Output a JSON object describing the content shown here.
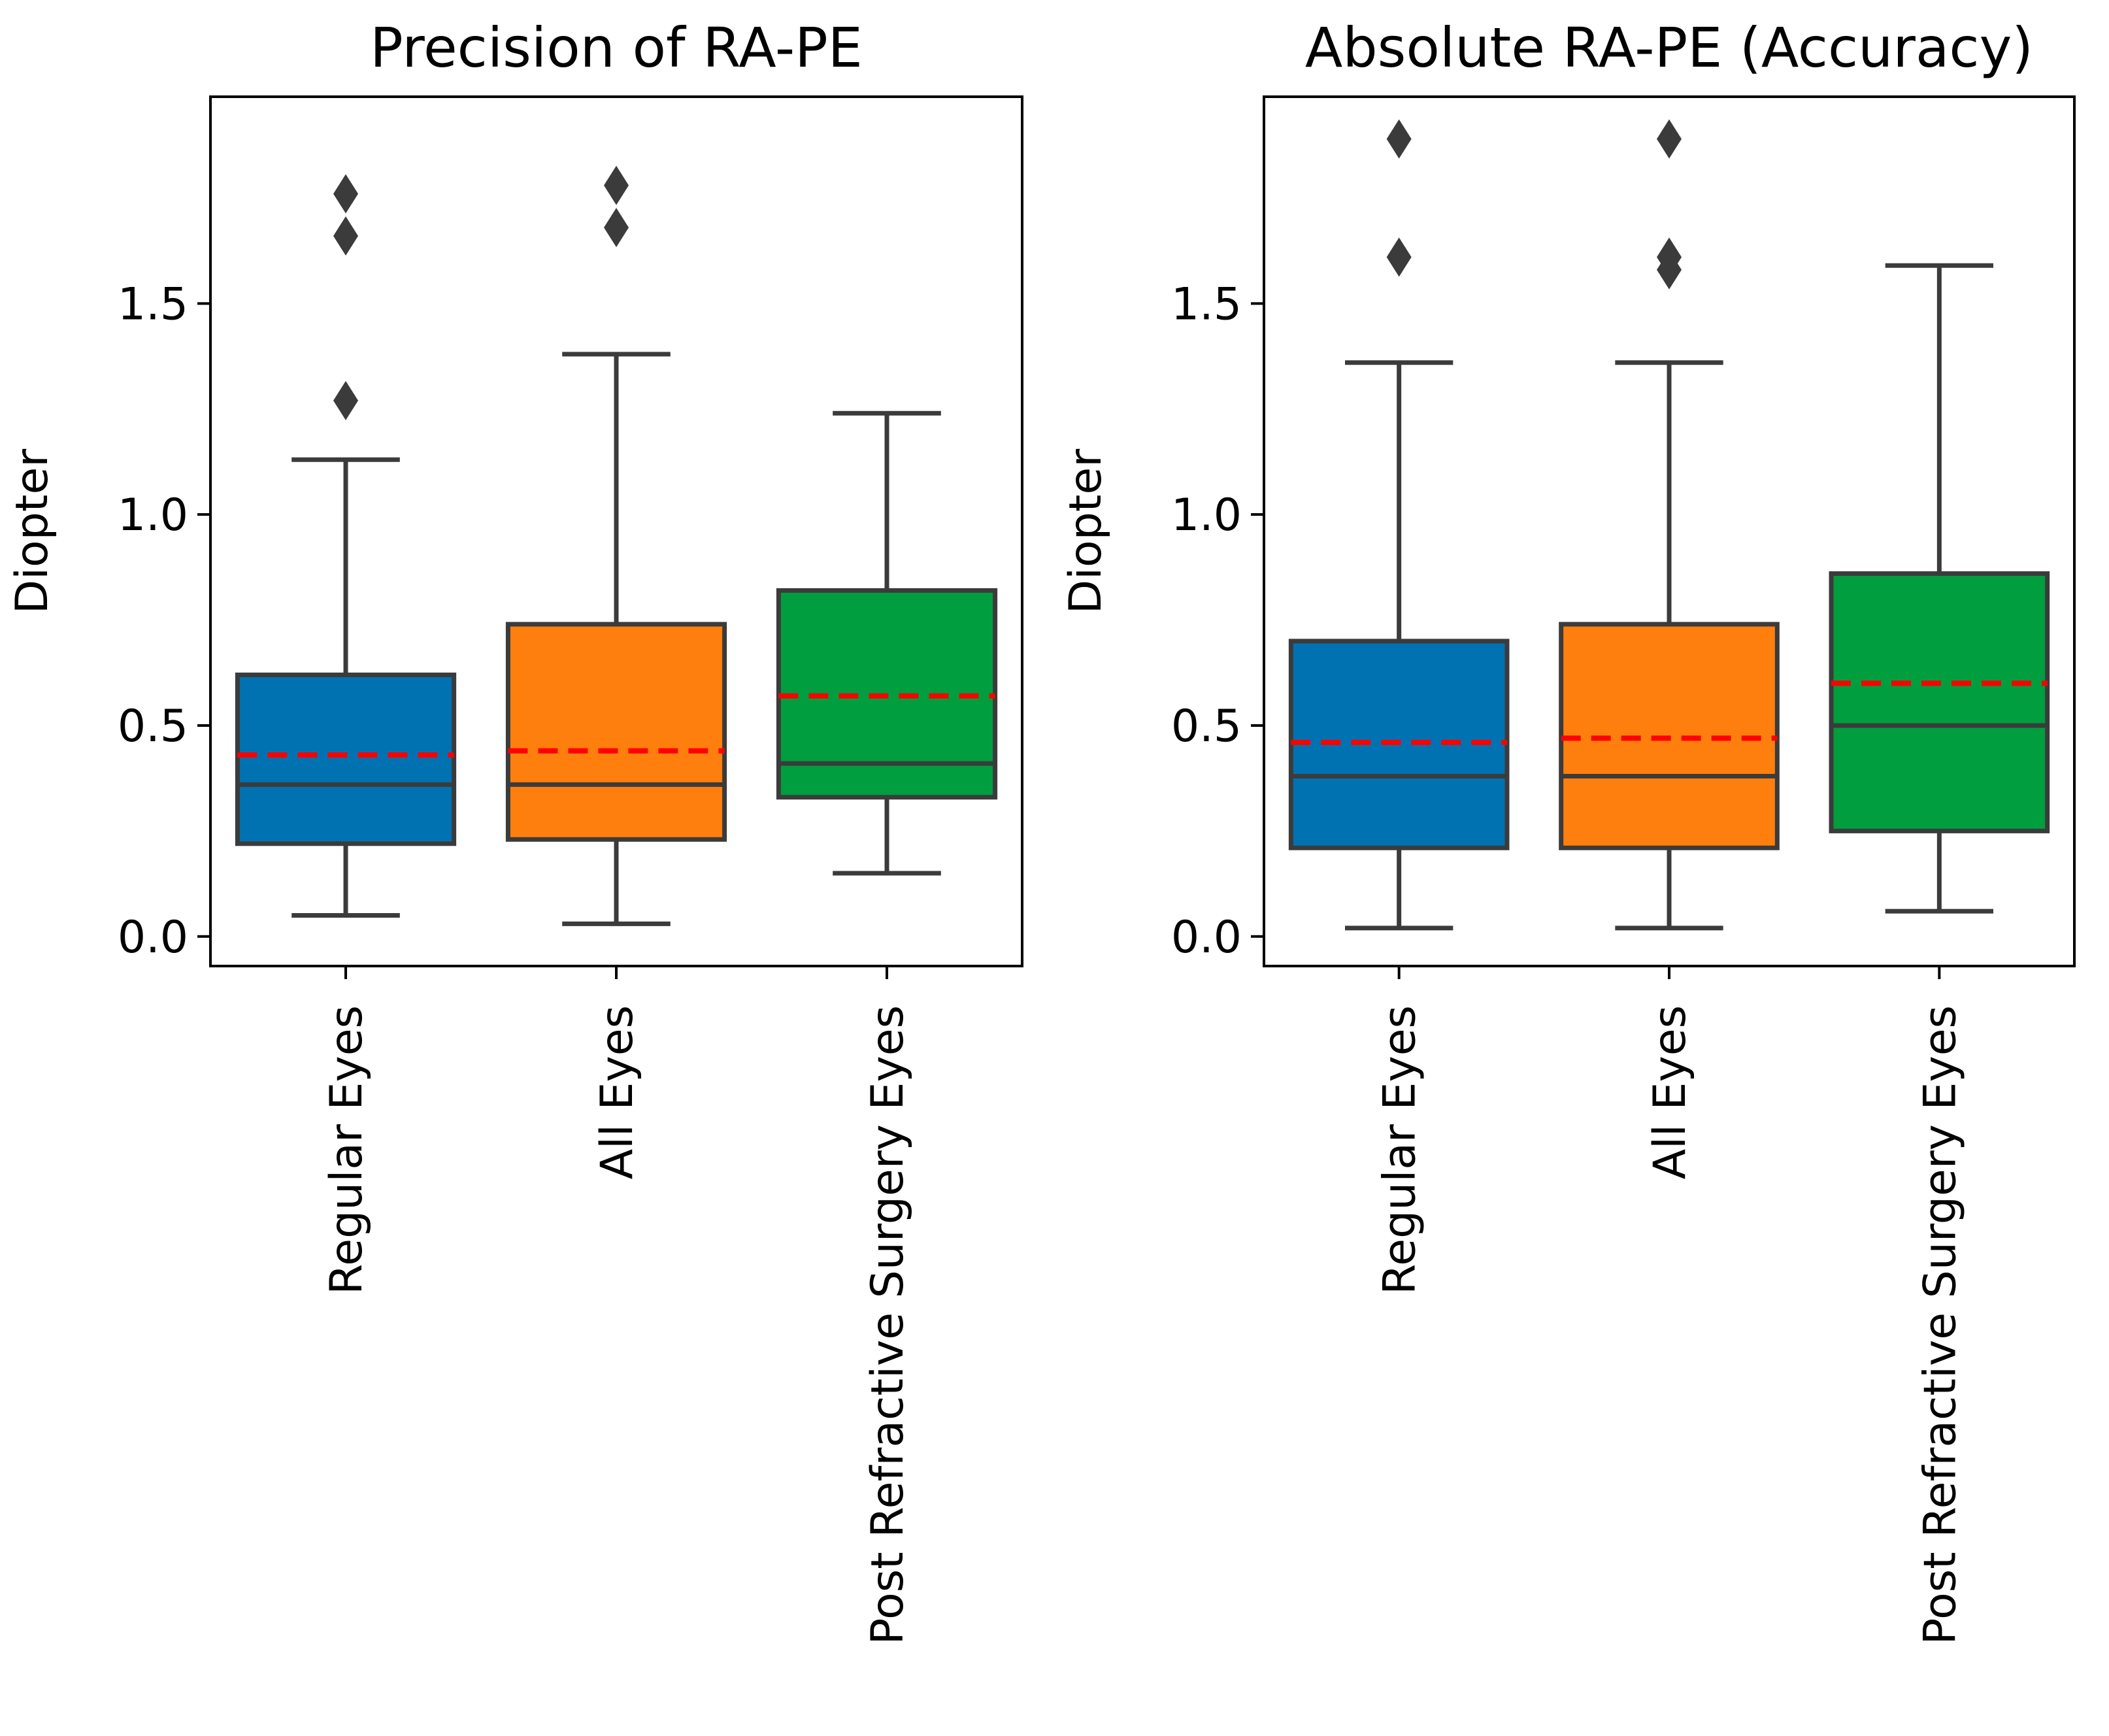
{
  "chart_data": [
    {
      "type": "box",
      "title": "Precision of RA-PE",
      "ylabel": "Diopter",
      "xlabel": "",
      "ylim": [
        -0.07,
        1.99
      ],
      "yticks": [
        "0.0",
        "0.5",
        "1.0",
        "1.5"
      ],
      "categories": [
        "Regular Eyes",
        "All Eyes",
        "Post Refractive Surgery Eyes"
      ],
      "boxes": [
        {
          "name": "Regular Eyes",
          "whisker_low": 0.05,
          "q1": 0.22,
          "median": 0.36,
          "q3": 0.62,
          "whisker_high": 1.13,
          "mean": 0.43,
          "outliers": [
            1.27,
            1.66,
            1.76
          ],
          "color": "#0072b2"
        },
        {
          "name": "All Eyes",
          "whisker_low": 0.03,
          "q1": 0.23,
          "median": 0.36,
          "q3": 0.74,
          "whisker_high": 1.38,
          "mean": 0.44,
          "outliers": [
            1.68,
            1.78
          ],
          "color": "#ff7f0e"
        },
        {
          "name": "Post Refractive Surgery Eyes",
          "whisker_low": 0.15,
          "q1": 0.33,
          "median": 0.41,
          "q3": 0.82,
          "whisker_high": 1.24,
          "mean": 0.57,
          "outliers": [],
          "color": "#009e3e"
        }
      ],
      "mean_line_color": "#ff0000",
      "grid": false
    },
    {
      "type": "box",
      "title": "Absolute RA-PE (Accuracy)",
      "ylabel": "Diopter",
      "xlabel": "",
      "ylim": [
        -0.07,
        1.99
      ],
      "yticks": [
        "0.0",
        "0.5",
        "1.0",
        "1.5"
      ],
      "categories": [
        "Regular Eyes",
        "All Eyes",
        "Post Refractive Surgery Eyes"
      ],
      "boxes": [
        {
          "name": "Regular Eyes",
          "whisker_low": 0.02,
          "q1": 0.21,
          "median": 0.38,
          "q3": 0.7,
          "whisker_high": 1.36,
          "mean": 0.46,
          "outliers": [
            1.61,
            1.89
          ],
          "color": "#0072b2"
        },
        {
          "name": "All Eyes",
          "whisker_low": 0.02,
          "q1": 0.21,
          "median": 0.38,
          "q3": 0.74,
          "whisker_high": 1.36,
          "mean": 0.47,
          "outliers": [
            1.58,
            1.61,
            1.89
          ],
          "color": "#ff7f0e"
        },
        {
          "name": "Post Refractive Surgery Eyes",
          "whisker_low": 0.06,
          "q1": 0.25,
          "median": 0.5,
          "q3": 0.86,
          "whisker_high": 1.59,
          "mean": 0.6,
          "outliers": [],
          "color": "#009e3e"
        }
      ],
      "mean_line_color": "#ff0000",
      "grid": false
    }
  ]
}
